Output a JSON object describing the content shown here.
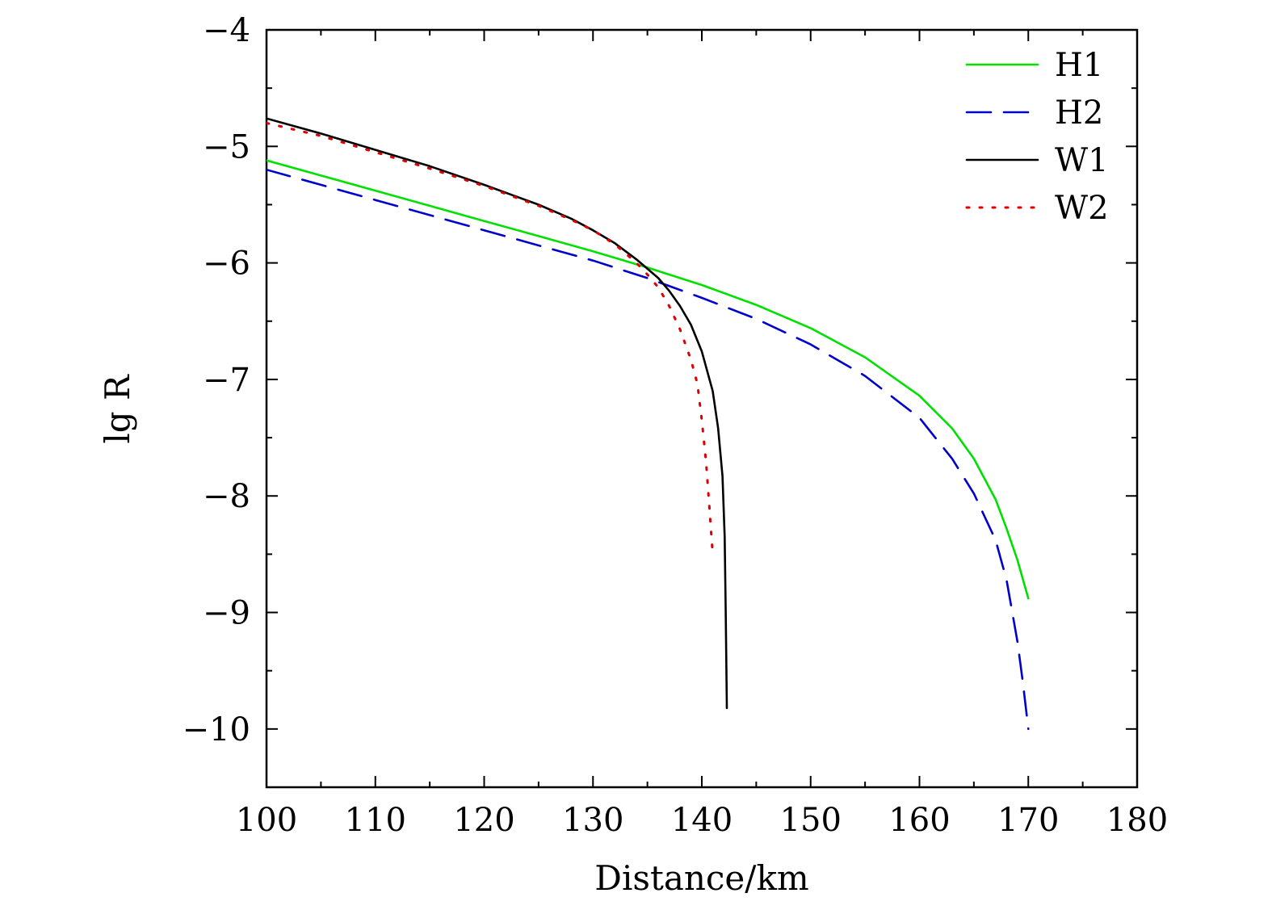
{
  "chart_data": {
    "type": "line",
    "xlabel": "Distance/km",
    "ylabel": "lg R",
    "xlim": [
      100,
      180
    ],
    "ylim": [
      -10.5,
      -4
    ],
    "xticks": [
      100,
      110,
      120,
      130,
      140,
      150,
      160,
      170,
      180
    ],
    "xtick_labels": [
      "100",
      "110",
      "120",
      "130",
      "140",
      "150",
      "160",
      "170",
      "180"
    ],
    "yticks": [
      -4,
      -5,
      -6,
      -7,
      -8,
      -9,
      -10
    ],
    "ytick_labels": [
      "−4",
      "−5",
      "−6",
      "−7",
      "−8",
      "−9",
      "−10"
    ],
    "legend_position": "top-right",
    "grid": false,
    "series": [
      {
        "name": "H1",
        "color": "#00e000",
        "style": "solid",
        "x": [
          100,
          105,
          110,
          115,
          120,
          125,
          130,
          135,
          140,
          145,
          150,
          155,
          160,
          163,
          165,
          167,
          168,
          169,
          170
        ],
        "y": [
          -5.12,
          -5.25,
          -5.38,
          -5.51,
          -5.64,
          -5.77,
          -5.9,
          -6.04,
          -6.19,
          -6.36,
          -6.56,
          -6.81,
          -7.14,
          -7.42,
          -7.68,
          -8.03,
          -8.28,
          -8.55,
          -8.88
        ]
      },
      {
        "name": "H2",
        "color": "#0000cc",
        "style": "dashed",
        "x": [
          100,
          105,
          110,
          115,
          120,
          125,
          130,
          135,
          140,
          145,
          150,
          155,
          160,
          163,
          165,
          167,
          168,
          169,
          169.5,
          170
        ],
        "y": [
          -5.2,
          -5.33,
          -5.46,
          -5.59,
          -5.72,
          -5.85,
          -5.98,
          -6.13,
          -6.3,
          -6.48,
          -6.7,
          -6.97,
          -7.33,
          -7.68,
          -7.98,
          -8.38,
          -8.72,
          -9.25,
          -9.6,
          -10.0
        ]
      },
      {
        "name": "W1",
        "color": "#000000",
        "style": "solid",
        "x": [
          100,
          105,
          110,
          115,
          120,
          125,
          128,
          130,
          132,
          134,
          136,
          137,
          138,
          139,
          140,
          141,
          141.5,
          141.9,
          142.1,
          142.2,
          142.3
        ],
        "y": [
          -4.76,
          -4.89,
          -5.03,
          -5.17,
          -5.33,
          -5.5,
          -5.62,
          -5.72,
          -5.83,
          -5.97,
          -6.13,
          -6.24,
          -6.37,
          -6.53,
          -6.76,
          -7.1,
          -7.42,
          -7.83,
          -8.35,
          -9.0,
          -9.82
        ]
      },
      {
        "name": "W2",
        "color": "#dd0000",
        "style": "dotted",
        "x": [
          100,
          105,
          110,
          115,
          120,
          125,
          128,
          130,
          132,
          134,
          135,
          136,
          137,
          138,
          139,
          139.6,
          140,
          140.4,
          140.7,
          141
        ],
        "y": [
          -4.8,
          -4.91,
          -5.05,
          -5.19,
          -5.34,
          -5.51,
          -5.63,
          -5.72,
          -5.84,
          -6.0,
          -6.1,
          -6.21,
          -6.37,
          -6.57,
          -6.83,
          -7.04,
          -7.35,
          -7.72,
          -8.1,
          -8.5
        ]
      }
    ]
  }
}
